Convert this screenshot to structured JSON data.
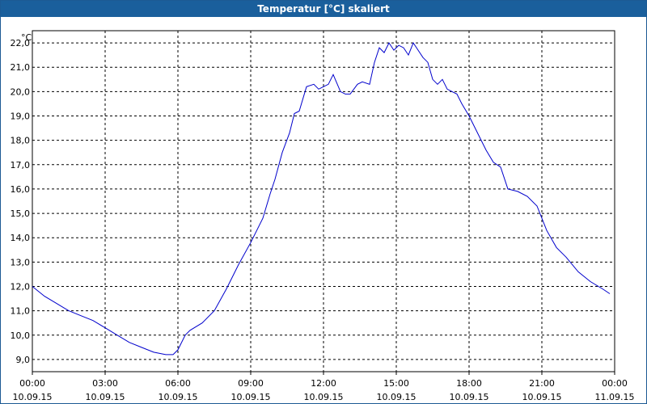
{
  "window": {
    "title": "Temperatur [°C] skaliert"
  },
  "chart_data": {
    "type": "line",
    "title": "Temperatur [°C] skaliert",
    "ylabel": "°C",
    "xlabel": "",
    "ylim": [
      8.5,
      22.5
    ],
    "xlim": [
      0,
      24
    ],
    "grid": true,
    "y_ticks": [
      "9,0",
      "10,0",
      "11,0",
      "12,0",
      "13,0",
      "14,0",
      "15,0",
      "16,0",
      "17,0",
      "18,0",
      "19,0",
      "20,0",
      "21,0",
      "22,0"
    ],
    "x_ticks": [
      {
        "time": "00:00",
        "date": "10.09.15"
      },
      {
        "time": "03:00",
        "date": "10.09.15"
      },
      {
        "time": "06:00",
        "date": "10.09.15"
      },
      {
        "time": "09:00",
        "date": "10.09.15"
      },
      {
        "time": "12:00",
        "date": "10.09.15"
      },
      {
        "time": "15:00",
        "date": "10.09.15"
      },
      {
        "time": "18:00",
        "date": "10.09.15"
      },
      {
        "time": "21:00",
        "date": "10.09.15"
      },
      {
        "time": "00:00",
        "date": "11.09.15"
      }
    ],
    "series": [
      {
        "color": "#0000cc",
        "x": [
          0,
          0.5,
          1,
          1.5,
          2,
          2.5,
          3,
          3.5,
          4,
          4.5,
          5,
          5.5,
          5.8,
          6,
          6.3,
          6.5,
          7,
          7.5,
          8,
          8.5,
          9,
          9.5,
          9.8,
          10,
          10.3,
          10.6,
          10.8,
          11.0,
          11.3,
          11.6,
          11.8,
          12.0,
          12.2,
          12.4,
          12.7,
          12.9,
          13.1,
          13.4,
          13.6,
          13.9,
          14.1,
          14.3,
          14.5,
          14.7,
          14.9,
          15.1,
          15.3,
          15.5,
          15.7,
          15.9,
          16.1,
          16.3,
          16.5,
          16.7,
          16.9,
          17.1,
          17.3,
          17.5,
          17.7,
          18.0,
          18.3,
          18.7,
          19.0,
          19.3,
          19.6,
          20.0,
          20.4,
          20.8,
          21.2,
          21.6,
          22.0,
          22.5,
          23.0,
          23.5,
          23.8
        ],
        "y": [
          12.0,
          11.6,
          11.3,
          11.0,
          10.8,
          10.6,
          10.3,
          10.0,
          9.7,
          9.5,
          9.3,
          9.2,
          9.2,
          9.4,
          10.0,
          10.2,
          10.5,
          11.0,
          11.9,
          12.9,
          13.8,
          14.8,
          15.8,
          16.4,
          17.5,
          18.3,
          19.1,
          19.2,
          20.2,
          20.3,
          20.1,
          20.2,
          20.3,
          20.7,
          20.0,
          19.9,
          19.9,
          20.3,
          20.4,
          20.3,
          21.2,
          21.8,
          21.6,
          22.0,
          21.7,
          21.9,
          21.8,
          21.5,
          22.0,
          21.7,
          21.4,
          21.2,
          20.5,
          20.3,
          20.5,
          20.1,
          20.0,
          19.9,
          19.5,
          19.0,
          18.4,
          17.6,
          17.1,
          16.9,
          16.0,
          15.9,
          15.7,
          15.3,
          14.3,
          13.6,
          13.2,
          12.6,
          12.2,
          11.9,
          11.7
        ]
      }
    ]
  }
}
